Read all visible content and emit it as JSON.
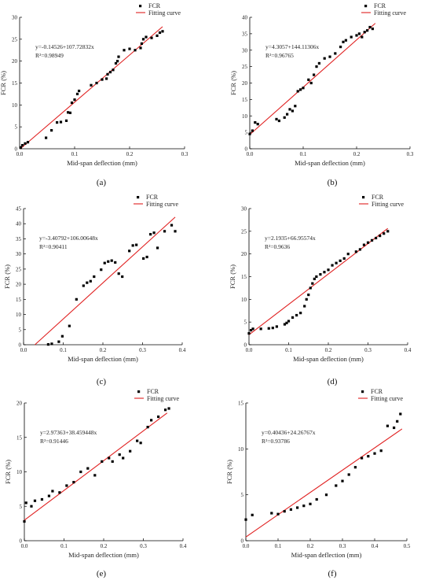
{
  "chart_data": [
    {
      "type": "scatter",
      "panel": "(a)",
      "xlabel": "Mid-span deflection (mm)",
      "ylabel": "FCR (%)",
      "xlim": [
        0,
        0.3
      ],
      "ylim": [
        0,
        30
      ],
      "xticks": [
        "0.0",
        "0.1",
        "0.2",
        "0.3"
      ],
      "yticks": [
        "0",
        "5",
        "10",
        "15",
        "20",
        "25",
        "30"
      ],
      "legend": [
        "FCR",
        "Fitting curve"
      ],
      "equation": "y=-0.14526+107.72832x",
      "r2": "R²=0.98949",
      "fit": {
        "intercept": -0.14526,
        "slope": 107.72832,
        "x_range": [
          0,
          0.26
        ]
      },
      "series": [
        {
          "name": "FCR",
          "points": [
            [
              0.002,
              0.3
            ],
            [
              0.005,
              0.8
            ],
            [
              0.01,
              1.2
            ],
            [
              0.015,
              1.5
            ],
            [
              0.048,
              2.5
            ],
            [
              0.058,
              4.2
            ],
            [
              0.068,
              6.0
            ],
            [
              0.075,
              6.1
            ],
            [
              0.085,
              6.4
            ],
            [
              0.088,
              8.3
            ],
            [
              0.092,
              8.2
            ],
            [
              0.095,
              10.5
            ],
            [
              0.1,
              11.2
            ],
            [
              0.105,
              12.5
            ],
            [
              0.108,
              13.2
            ],
            [
              0.13,
              14.5
            ],
            [
              0.14,
              15.0
            ],
            [
              0.15,
              15.8
            ],
            [
              0.158,
              16.0
            ],
            [
              0.16,
              17.0
            ],
            [
              0.165,
              17.5
            ],
            [
              0.17,
              18.0
            ],
            [
              0.175,
              19.5
            ],
            [
              0.178,
              20.0
            ],
            [
              0.18,
              21.0
            ],
            [
              0.19,
              22.5
            ],
            [
              0.2,
              22.8
            ],
            [
              0.21,
              22.5
            ],
            [
              0.22,
              23.0
            ],
            [
              0.222,
              24.0
            ],
            [
              0.225,
              25.0
            ],
            [
              0.23,
              25.5
            ],
            [
              0.24,
              25.3
            ],
            [
              0.25,
              25.8
            ],
            [
              0.255,
              26.5
            ],
            [
              0.26,
              26.8
            ]
          ]
        }
      ]
    },
    {
      "type": "scatter",
      "panel": "(b)",
      "xlabel": "Mid-span deflection (mm)",
      "ylabel": "FCR (%)",
      "xlim": [
        0,
        0.3
      ],
      "ylim": [
        0,
        40
      ],
      "xticks": [
        "0.0",
        "0.1",
        "0.2",
        "0.3"
      ],
      "yticks": [
        "0",
        "5",
        "10",
        "15",
        "20",
        "25",
        "30",
        "35",
        "40"
      ],
      "legend": [
        "FCR",
        "Fitting curve"
      ],
      "equation": "y=4.3057+144.11306x",
      "r2": "R²=0.96765",
      "fit": {
        "intercept": 4.3057,
        "slope": 144.11306,
        "x_range": [
          0,
          0.235
        ]
      },
      "series": [
        {
          "name": "FCR",
          "points": [
            [
              0.0,
              4.5
            ],
            [
              0.005,
              5.5
            ],
            [
              0.01,
              8.0
            ],
            [
              0.015,
              7.5
            ],
            [
              0.05,
              9.0
            ],
            [
              0.055,
              8.5
            ],
            [
              0.065,
              9.5
            ],
            [
              0.07,
              10.5
            ],
            [
              0.075,
              12.0
            ],
            [
              0.08,
              11.5
            ],
            [
              0.085,
              13.0
            ],
            [
              0.09,
              17.5
            ],
            [
              0.095,
              18.0
            ],
            [
              0.1,
              18.5
            ],
            [
              0.11,
              21.0
            ],
            [
              0.115,
              20.0
            ],
            [
              0.12,
              22.5
            ],
            [
              0.125,
              25.0
            ],
            [
              0.13,
              26.0
            ],
            [
              0.14,
              27.5
            ],
            [
              0.15,
              28.0
            ],
            [
              0.16,
              29.0
            ],
            [
              0.17,
              31.0
            ],
            [
              0.175,
              32.5
            ],
            [
              0.18,
              33.0
            ],
            [
              0.19,
              34.0
            ],
            [
              0.2,
              34.5
            ],
            [
              0.205,
              35.0
            ],
            [
              0.21,
              34.0
            ],
            [
              0.215,
              35.5
            ],
            [
              0.22,
              36.0
            ],
            [
              0.225,
              37.0
            ],
            [
              0.23,
              36.5
            ]
          ]
        }
      ]
    },
    {
      "type": "scatter",
      "panel": "(c)",
      "xlabel": "Mid-span deflection (mm)",
      "ylabel": "FCR (%)",
      "xlim": [
        0,
        0.45
      ],
      "ylim": [
        0,
        45
      ],
      "xticks": [
        "0.0",
        "0.1",
        "0.2",
        "0.3",
        "0.4"
      ],
      "yticks": [
        "0",
        "5",
        "10",
        "15",
        "20",
        "25",
        "30",
        "35",
        "40",
        "45"
      ],
      "legend": [
        "FCR",
        "Fitting curve"
      ],
      "equation": "y=-3.40792+106.00648x",
      "r2": "R²=0.90411",
      "fit": {
        "intercept": -3.40792,
        "slope": 106.00648,
        "x_range": [
          0.032,
          0.43
        ]
      },
      "series": [
        {
          "name": "FCR",
          "points": [
            [
              0.07,
              0.1
            ],
            [
              0.08,
              0.3
            ],
            [
              0.1,
              1.0
            ],
            [
              0.11,
              2.8
            ],
            [
              0.13,
              6.2
            ],
            [
              0.15,
              15.0
            ],
            [
              0.17,
              19.5
            ],
            [
              0.18,
              20.5
            ],
            [
              0.19,
              21.0
            ],
            [
              0.2,
              22.5
            ],
            [
              0.22,
              24.8
            ],
            [
              0.23,
              27.0
            ],
            [
              0.24,
              27.5
            ],
            [
              0.25,
              27.8
            ],
            [
              0.26,
              27.2
            ],
            [
              0.27,
              23.5
            ],
            [
              0.28,
              22.5
            ],
            [
              0.3,
              31.0
            ],
            [
              0.31,
              32.8
            ],
            [
              0.32,
              33.0
            ],
            [
              0.34,
              28.5
            ],
            [
              0.35,
              29.0
            ],
            [
              0.36,
              36.5
            ],
            [
              0.37,
              37.0
            ],
            [
              0.38,
              32.0
            ],
            [
              0.4,
              37.5
            ],
            [
              0.42,
              39.5
            ],
            [
              0.43,
              37.5
            ]
          ]
        }
      ]
    },
    {
      "type": "scatter",
      "panel": "(d)",
      "xlabel": "Mid-span deflection (mm)",
      "ylabel": "FCR (%)",
      "xlim": [
        0,
        0.4
      ],
      "ylim": [
        0,
        30
      ],
      "xticks": [
        "0.0",
        "0.1",
        "0.2",
        "0.3",
        "0.4"
      ],
      "yticks": [
        "0",
        "5",
        "10",
        "15",
        "20",
        "25",
        "30"
      ],
      "legend": [
        "FCR",
        "Fitting curve"
      ],
      "equation": "y=2.1935+66.95574x",
      "r2": "R²=0.9636",
      "fit": {
        "intercept": 2.1935,
        "slope": 66.95574,
        "x_range": [
          0,
          0.35
        ]
      },
      "series": [
        {
          "name": "FCR",
          "points": [
            [
              0.0,
              2.5
            ],
            [
              0.005,
              3.2
            ],
            [
              0.01,
              3.5
            ],
            [
              0.03,
              3.5
            ],
            [
              0.05,
              3.6
            ],
            [
              0.06,
              3.7
            ],
            [
              0.07,
              4.0
            ],
            [
              0.09,
              4.5
            ],
            [
              0.095,
              4.8
            ],
            [
              0.1,
              5.2
            ],
            [
              0.11,
              6.0
            ],
            [
              0.12,
              6.5
            ],
            [
              0.13,
              7.0
            ],
            [
              0.14,
              8.5
            ],
            [
              0.145,
              10.0
            ],
            [
              0.15,
              11.0
            ],
            [
              0.155,
              12.5
            ],
            [
              0.16,
              13.5
            ],
            [
              0.165,
              14.5
            ],
            [
              0.17,
              15.0
            ],
            [
              0.18,
              15.5
            ],
            [
              0.19,
              16.0
            ],
            [
              0.2,
              16.5
            ],
            [
              0.21,
              17.5
            ],
            [
              0.22,
              18.0
            ],
            [
              0.23,
              18.5
            ],
            [
              0.24,
              19.0
            ],
            [
              0.25,
              20.0
            ],
            [
              0.27,
              20.5
            ],
            [
              0.28,
              21.0
            ],
            [
              0.29,
              22.0
            ],
            [
              0.3,
              22.5
            ],
            [
              0.31,
              23.0
            ],
            [
              0.32,
              23.5
            ],
            [
              0.33,
              24.0
            ],
            [
              0.34,
              24.5
            ],
            [
              0.35,
              25.0
            ]
          ]
        }
      ]
    },
    {
      "type": "scatter",
      "panel": "(e)",
      "xlabel": "Mid-span deflection (mm)",
      "ylabel": "FCR (%)",
      "xlim": [
        0,
        0.45
      ],
      "ylim": [
        0,
        20
      ],
      "xticks": [
        "0.0",
        "0.1",
        "0.2",
        "0.3",
        "0.4"
      ],
      "yticks": [
        "0",
        "5",
        "10",
        "15",
        "20"
      ],
      "legend": [
        "FCR",
        "Fitting curve"
      ],
      "equation": "y=2.97363+38.459448x",
      "r2": "R²=0.91446",
      "fit": {
        "intercept": 2.97363,
        "slope": 38.459448,
        "x_range": [
          0,
          0.405
        ]
      },
      "series": [
        {
          "name": "FCR",
          "points": [
            [
              0.0,
              2.8
            ],
            [
              0.005,
              5.5
            ],
            [
              0.02,
              5.0
            ],
            [
              0.03,
              5.8
            ],
            [
              0.05,
              6.0
            ],
            [
              0.07,
              6.5
            ],
            [
              0.08,
              7.2
            ],
            [
              0.1,
              7.0
            ],
            [
              0.12,
              8.0
            ],
            [
              0.14,
              8.5
            ],
            [
              0.16,
              10.0
            ],
            [
              0.18,
              10.5
            ],
            [
              0.2,
              9.5
            ],
            [
              0.22,
              11.5
            ],
            [
              0.24,
              12.0
            ],
            [
              0.25,
              11.5
            ],
            [
              0.27,
              12.5
            ],
            [
              0.28,
              12.0
            ],
            [
              0.3,
              13.0
            ],
            [
              0.32,
              14.5
            ],
            [
              0.33,
              14.2
            ],
            [
              0.35,
              16.5
            ],
            [
              0.36,
              17.5
            ],
            [
              0.38,
              18.0
            ],
            [
              0.4,
              19.0
            ],
            [
              0.41,
              19.2
            ]
          ]
        }
      ]
    },
    {
      "type": "scatter",
      "panel": "(f)",
      "xlabel": "Mid-span deflection (mm)",
      "ylabel": "FCR (%)",
      "xlim": [
        0,
        0.5
      ],
      "ylim": [
        0,
        15
      ],
      "xticks": [
        "0.0",
        "0.1",
        "0.2",
        "0.3",
        "0.4",
        "0.5"
      ],
      "yticks": [
        "0",
        "5",
        "10",
        "15"
      ],
      "legend": [
        "FCR",
        "Fitting curve"
      ],
      "equation": "y=0.40436+24.26767x",
      "r2": "R²=0.93786",
      "fit": {
        "intercept": 0.40436,
        "slope": 24.26767,
        "x_range": [
          0,
          0.485
        ]
      },
      "series": [
        {
          "name": "FCR",
          "points": [
            [
              0.0,
              2.3
            ],
            [
              0.02,
              2.8
            ],
            [
              0.08,
              3.0
            ],
            [
              0.1,
              2.9
            ],
            [
              0.12,
              3.2
            ],
            [
              0.14,
              3.4
            ],
            [
              0.16,
              3.6
            ],
            [
              0.18,
              3.8
            ],
            [
              0.2,
              4.0
            ],
            [
              0.22,
              4.5
            ],
            [
              0.25,
              5.0
            ],
            [
              0.28,
              6.0
            ],
            [
              0.3,
              6.5
            ],
            [
              0.32,
              7.2
            ],
            [
              0.34,
              8.0
            ],
            [
              0.36,
              9.0
            ],
            [
              0.38,
              9.2
            ],
            [
              0.4,
              9.5
            ],
            [
              0.42,
              9.8
            ],
            [
              0.44,
              12.5
            ],
            [
              0.46,
              12.3
            ],
            [
              0.47,
              13.0
            ],
            [
              0.48,
              13.8
            ]
          ]
        }
      ]
    }
  ]
}
